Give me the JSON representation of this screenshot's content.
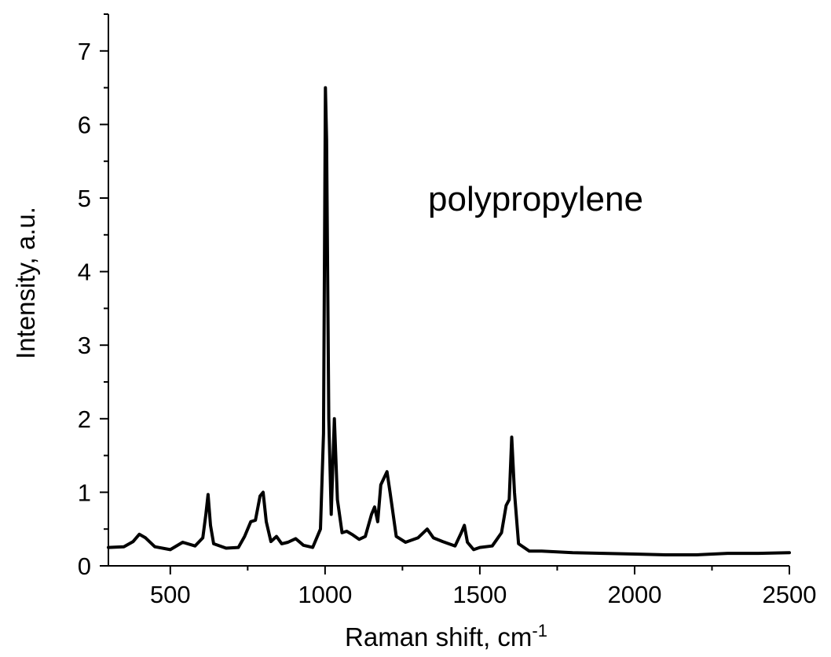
{
  "chart_data": {
    "type": "line",
    "title": "",
    "annotation": "polypropylene",
    "xlabel": "Raman shift, cm",
    "xlabel_superscript": "-1",
    "ylabel": "Intensity, a.u.",
    "xlim": [
      300,
      2500
    ],
    "ylim": [
      0,
      7.5
    ],
    "xticks": [
      500,
      1000,
      1500,
      2000,
      2500
    ],
    "xtick_labels": [
      "500",
      "1000",
      "1500",
      "2000",
      "2500"
    ],
    "yticks": [
      0,
      1,
      2,
      3,
      4,
      5,
      6,
      7
    ],
    "ytick_labels": [
      "0",
      "1",
      "2",
      "3",
      "4",
      "5",
      "6",
      "7"
    ],
    "grid": false,
    "line_color": "#000000",
    "series": [
      {
        "x": [
          300,
          350,
          380,
          400,
          420,
          450,
          500,
          540,
          580,
          605,
          615,
          622,
          630,
          640,
          680,
          720,
          740,
          760,
          775,
          790,
          800,
          810,
          825,
          843,
          860,
          880,
          905,
          930,
          960,
          985,
          995,
          1001,
          1005,
          1012,
          1020,
          1030,
          1040,
          1055,
          1070,
          1090,
          1110,
          1130,
          1150,
          1160,
          1170,
          1180,
          1200,
          1210,
          1230,
          1260,
          1300,
          1330,
          1350,
          1380,
          1420,
          1440,
          1450,
          1460,
          1480,
          1500,
          1540,
          1570,
          1585,
          1595,
          1603,
          1612,
          1625,
          1660,
          1700,
          1800,
          1900,
          2000,
          2100,
          2200,
          2300,
          2400,
          2500
        ],
        "y": [
          0.25,
          0.26,
          0.33,
          0.43,
          0.38,
          0.26,
          0.22,
          0.32,
          0.27,
          0.38,
          0.7,
          0.97,
          0.55,
          0.3,
          0.24,
          0.25,
          0.4,
          0.6,
          0.62,
          0.95,
          1.0,
          0.6,
          0.33,
          0.4,
          0.3,
          0.32,
          0.37,
          0.28,
          0.25,
          0.5,
          1.8,
          6.5,
          5.8,
          2.0,
          0.7,
          2.0,
          0.9,
          0.45,
          0.47,
          0.42,
          0.36,
          0.4,
          0.7,
          0.8,
          0.6,
          1.1,
          1.28,
          1.0,
          0.4,
          0.32,
          0.38,
          0.5,
          0.38,
          0.33,
          0.27,
          0.45,
          0.55,
          0.32,
          0.22,
          0.25,
          0.27,
          0.45,
          0.82,
          0.9,
          1.75,
          1.0,
          0.3,
          0.2,
          0.2,
          0.18,
          0.17,
          0.16,
          0.15,
          0.15,
          0.17,
          0.17,
          0.18
        ]
      }
    ]
  }
}
